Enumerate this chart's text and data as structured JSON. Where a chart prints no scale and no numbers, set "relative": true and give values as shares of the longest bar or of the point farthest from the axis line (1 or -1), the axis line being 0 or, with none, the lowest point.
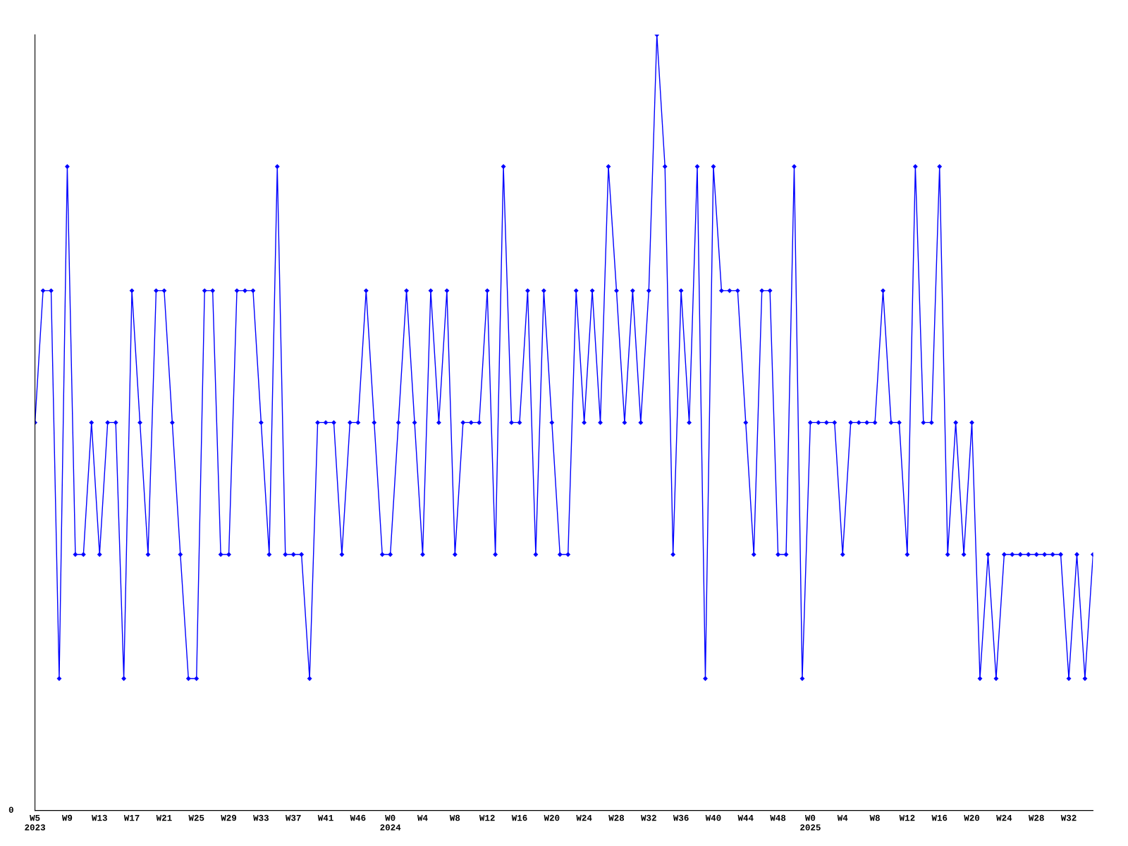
{
  "chart_data": {
    "type": "line",
    "relative": true,
    "marker": "diamond",
    "line_style": "solid",
    "grid": false,
    "annotations": [
      "0"
    ],
    "categories": [
      "W5\n2023",
      null,
      null,
      null,
      "W9",
      null,
      null,
      null,
      "W13",
      null,
      null,
      null,
      "W17",
      null,
      null,
      null,
      "W21",
      null,
      null,
      null,
      "W25",
      null,
      null,
      null,
      "W29",
      null,
      null,
      null,
      "W33",
      null,
      null,
      null,
      "W37",
      null,
      null,
      null,
      "W41",
      null,
      null,
      null,
      "W46",
      null,
      null,
      null,
      "W0\n2024",
      null,
      null,
      null,
      "W4",
      null,
      null,
      null,
      "W8",
      null,
      null,
      null,
      "W12",
      null,
      null,
      null,
      "W16",
      null,
      null,
      null,
      "W20",
      null,
      null,
      null,
      "W24",
      null,
      null,
      null,
      "W28",
      null,
      null,
      null,
      "W32",
      null,
      null,
      null,
      "W36",
      null,
      null,
      null,
      "W40",
      null,
      null,
      null,
      "W44",
      null,
      null,
      null,
      "W48",
      null,
      null,
      null,
      "W0\n2025",
      null,
      null,
      null,
      "W4",
      null,
      null,
      null,
      "W8",
      null,
      null,
      null,
      "W12",
      null,
      null,
      null,
      "W16",
      null,
      null,
      null,
      "W20",
      null,
      null,
      null,
      "W24",
      null,
      null,
      null,
      "W28",
      null,
      null,
      null,
      "W32",
      null,
      null,
      null
    ],
    "series": [
      {
        "color": "#0000ff",
        "values": [
          0.5,
          0.67,
          0.67,
          0.17,
          0.83,
          0.33,
          0.33,
          0.5,
          0.33,
          0.5,
          0.5,
          0.17,
          0.67,
          0.5,
          0.33,
          0.67,
          0.67,
          0.5,
          0.33,
          0.17,
          0.17,
          0.67,
          0.67,
          0.33,
          0.33,
          0.67,
          0.67,
          0.67,
          0.5,
          0.33,
          0.83,
          0.33,
          0.33,
          0.33,
          0.17,
          0.5,
          0.5,
          0.5,
          0.33,
          0.5,
          0.5,
          0.67,
          0.5,
          0.33,
          0.33,
          0.5,
          0.67,
          0.5,
          0.33,
          0.67,
          0.5,
          0.67,
          0.33,
          0.5,
          0.5,
          0.5,
          0.67,
          0.33,
          0.83,
          0.5,
          0.5,
          0.67,
          0.33,
          0.67,
          0.5,
          0.33,
          0.33,
          0.67,
          0.5,
          0.67,
          0.5,
          0.83,
          0.67,
          0.5,
          0.67,
          0.5,
          0.67,
          1,
          0.83,
          0.33,
          0.67,
          0.5,
          0.83,
          0.17,
          0.83,
          0.67,
          0.67,
          0.67,
          0.5,
          0.33,
          0.67,
          0.67,
          0.33,
          0.33,
          0.83,
          0.17,
          0.5,
          0.5,
          0.5,
          0.5,
          0.33,
          0.5,
          0.5,
          0.5,
          0.5,
          0.67,
          0.5,
          0.5,
          0.33,
          0.83,
          0.5,
          0.5,
          0.83,
          0.33,
          0.5,
          0.33,
          0.5,
          0.17,
          0.33,
          0.17,
          0.33,
          0.33,
          0.33,
          0.33,
          0.33,
          0.33,
          0.33,
          0.33,
          0.17,
          0.33,
          0.17,
          0.33
        ]
      }
    ]
  }
}
